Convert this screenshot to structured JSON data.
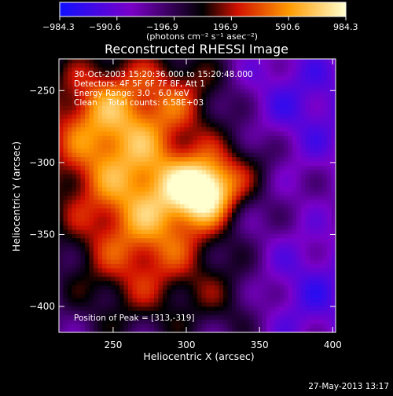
{
  "colorbar": {
    "ticks": [
      "−984.3",
      "−590.6",
      "−196.9",
      "196.9",
      "590.6",
      "984.3"
    ],
    "unit_label": "(photons cm⁻² s⁻¹ asec⁻²)",
    "stops": [
      "#1010ff",
      "#7a00c8",
      "#000000",
      "#d01000",
      "#ff9a00",
      "#ffffd0"
    ]
  },
  "chart_data": {
    "type": "heatmap",
    "title": "Reconstructed RHESSI Image",
    "xlabel": "Heliocentric X (arcsec)",
    "ylabel": "Heliocentric Y (arcsec)",
    "xlim": [
      213,
      402
    ],
    "ylim": [
      -418,
      -228
    ],
    "xticks": [
      250,
      300,
      350,
      400
    ],
    "yticks": [
      -250,
      -300,
      -350,
      -400
    ],
    "colorscale_range": [
      -984.3,
      984.3
    ],
    "peak": {
      "x": 313,
      "y": -319
    },
    "annotations": [
      "30-Oct-2003 15:20:36.000 to 15:20:48.000",
      "Detectors: 4F 5F 6F 7F 8F, Att 1",
      "Energy Range: 3.0 - 6.0 keV",
      "Clean    Total counts: 6.58E+03"
    ],
    "peak_label": "Position of Peak = [313,-319]"
  },
  "footer": {
    "date": "27-May-2013 13:17"
  }
}
